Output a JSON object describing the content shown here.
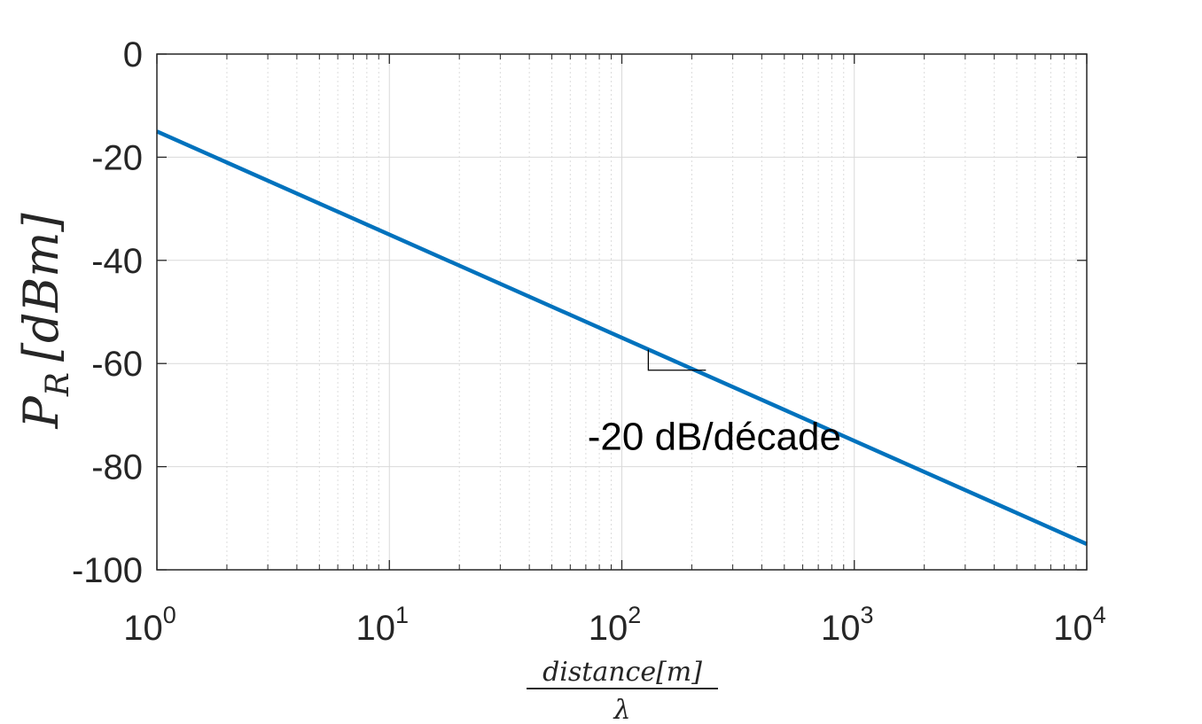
{
  "chart_data": {
    "type": "line",
    "x_scale": "log",
    "x_range": [
      1,
      10000
    ],
    "y_range": [
      -100,
      0
    ],
    "grid": true,
    "x_ticks": [
      {
        "base": "10",
        "exp": "0",
        "value": 1
      },
      {
        "base": "10",
        "exp": "1",
        "value": 10
      },
      {
        "base": "10",
        "exp": "2",
        "value": 100
      },
      {
        "base": "10",
        "exp": "3",
        "value": 1000
      },
      {
        "base": "10",
        "exp": "4",
        "value": 10000
      }
    ],
    "y_ticks": [
      {
        "label": "0",
        "value": 0
      },
      {
        "label": "-20",
        "value": -20
      },
      {
        "label": "-40",
        "value": -40
      },
      {
        "label": "-60",
        "value": -60
      },
      {
        "label": "-80",
        "value": -80
      },
      {
        "label": "-100",
        "value": -100
      }
    ],
    "xlabel_numerator": "distance[m]",
    "xlabel_denominator": "λ",
    "ylabel": {
      "main": "P",
      "sub": "R",
      "unit": "[dBm]"
    },
    "series": [
      {
        "color": "#0072bd",
        "x": [
          1,
          10000
        ],
        "y": [
          -15,
          -95
        ]
      }
    ],
    "annotation": {
      "text": "-20 dB/décade",
      "x": 250,
      "y": -74
    },
    "slope_marker": {
      "x_start": 130,
      "x_end": 230,
      "y_start": -57.3,
      "y_end": -61.3
    }
  }
}
